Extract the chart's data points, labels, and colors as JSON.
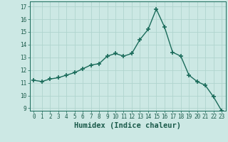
{
  "x": [
    0,
    1,
    2,
    3,
    4,
    5,
    6,
    7,
    8,
    9,
    10,
    11,
    12,
    13,
    14,
    15,
    16,
    17,
    18,
    19,
    20,
    21,
    22,
    23
  ],
  "y": [
    11.2,
    11.1,
    11.3,
    11.4,
    11.6,
    11.8,
    12.1,
    12.4,
    12.5,
    13.1,
    13.3,
    13.1,
    13.3,
    14.4,
    15.2,
    16.8,
    15.4,
    13.4,
    13.1,
    11.6,
    11.1,
    10.8,
    9.9,
    8.8
  ],
  "line_color": "#1a6b5a",
  "marker": "+",
  "marker_size": 4,
  "marker_linewidth": 1.2,
  "bg_color": "#cce8e4",
  "grid_color": "#b0d4ce",
  "xlabel": "Humidex (Indice chaleur)",
  "xlim": [
    -0.5,
    23.5
  ],
  "ylim": [
    8.8,
    17.4
  ],
  "yticks": [
    9,
    10,
    11,
    12,
    13,
    14,
    15,
    16,
    17
  ],
  "xticks": [
    0,
    1,
    2,
    3,
    4,
    5,
    6,
    7,
    8,
    9,
    10,
    11,
    12,
    13,
    14,
    15,
    16,
    17,
    18,
    19,
    20,
    21,
    22,
    23
  ],
  "tick_fontsize": 5.5,
  "xlabel_fontsize": 7.5,
  "linewidth": 1.0
}
